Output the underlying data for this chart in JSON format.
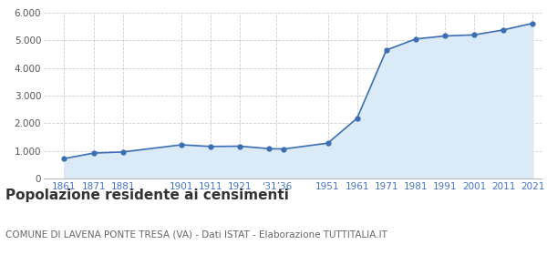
{
  "years": [
    1861,
    1871,
    1881,
    1901,
    1911,
    1921,
    1931,
    1936,
    1951,
    1961,
    1971,
    1981,
    1991,
    2001,
    2011,
    2021
  ],
  "population": [
    720,
    920,
    960,
    1220,
    1160,
    1170,
    1080,
    1070,
    1280,
    2180,
    4650,
    5050,
    5160,
    5200,
    5380,
    5620
  ],
  "x_tick_positions": [
    1861,
    1871,
    1881,
    1901,
    1911,
    1921,
    1933.5,
    1951,
    1961,
    1971,
    1981,
    1991,
    2001,
    2011,
    2021
  ],
  "x_tick_labels": [
    "1861",
    "1871",
    "1881",
    "1901",
    "1911",
    "1921",
    "‱31‱36",
    "1951",
    "1961",
    "1971",
    "1981",
    "1991",
    "2001",
    "2011",
    "2021"
  ],
  "line_color": "#3d6eb5",
  "fill_color": "#daeaf7",
  "marker_size": 3.5,
  "ylim": [
    0,
    6000
  ],
  "yticks": [
    0,
    1000,
    2000,
    3000,
    4000,
    5000,
    6000
  ],
  "title": "Popolazione residente ai censimenti",
  "subtitle": "COMUNE DI LAVENA PONTE TRESA (VA) - Dati ISTAT - Elaborazione TUTTITALIA.IT",
  "title_fontsize": 11,
  "subtitle_fontsize": 7.5,
  "grid_color": "#cccccc",
  "background_color": "#ffffff",
  "tick_label_color": "#4472c4",
  "ytick_label_color": "#555555"
}
